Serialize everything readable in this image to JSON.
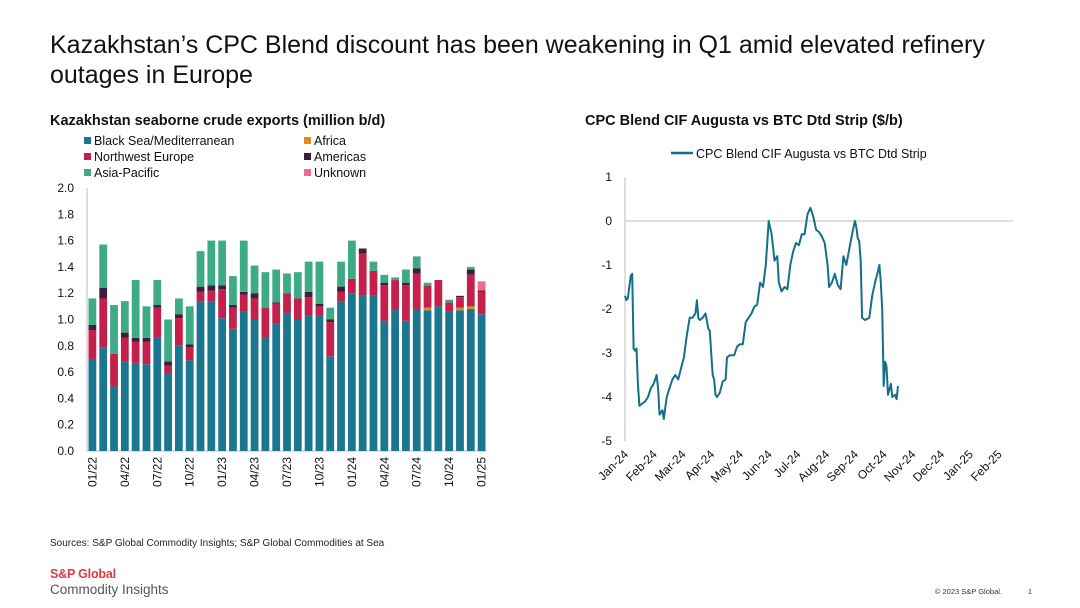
{
  "title": "Kazakhstan’s CPC Blend discount has been weakening in Q1 amid elevated refinery outages in Europe",
  "sources": "Sources: S&P Global Commodity Insights; S&P Global Commodities at Sea",
  "logo": {
    "line1": "S&P Global",
    "line2": "Commodity Insights"
  },
  "copyright": "© 2023 S&P Global.",
  "page_number": "1",
  "colors": {
    "black_sea": "#1b7690",
    "africa": "#e08b1f",
    "nw_europe": "#c4204b",
    "americas": "#3b1f3f",
    "asia_pacific": "#3eaa86",
    "unknown": "#f06b88",
    "line": "#137088"
  },
  "chart_data": [
    {
      "type": "bar",
      "stacked": true,
      "title": "Kazakhstan seaborne crude exports (million b/d)",
      "ylim": [
        0,
        2.0
      ],
      "yticks": [
        "0.0",
        "0.2",
        "0.4",
        "0.6",
        "0.8",
        "1.0",
        "1.2",
        "1.4",
        "1.6",
        "1.8",
        "2.0"
      ],
      "xtick_labels": [
        "01/22",
        "04/22",
        "07/22",
        "10/22",
        "01/23",
        "04/23",
        "07/23",
        "10/23",
        "01/24",
        "04/24",
        "07/24",
        "10/24",
        "01/25"
      ],
      "legend": [
        "Black Sea/Mediterranean",
        "Africa",
        "Northwest Europe",
        "Americas",
        "Asia-Pacific",
        "Unknown"
      ],
      "categories": [
        "01/22",
        "02/22",
        "03/22",
        "04/22",
        "05/22",
        "06/22",
        "07/22",
        "08/22",
        "09/22",
        "10/22",
        "11/22",
        "12/22",
        "01/23",
        "02/23",
        "03/23",
        "04/23",
        "05/23",
        "06/23",
        "07/23",
        "08/23",
        "09/23",
        "10/23",
        "11/23",
        "12/23",
        "01/24",
        "02/24",
        "03/24",
        "04/24",
        "05/24",
        "06/24",
        "07/24",
        "08/24",
        "09/24",
        "10/24",
        "11/24",
        "12/24",
        "01/25"
      ],
      "series": [
        {
          "name": "Black Sea/Mediterranean",
          "values": [
            0.7,
            0.79,
            0.49,
            0.68,
            0.67,
            0.66,
            0.86,
            0.59,
            0.8,
            0.69,
            1.14,
            1.14,
            1.01,
            0.93,
            1.06,
            1.0,
            0.86,
            0.97,
            1.05,
            1.0,
            1.03,
            1.03,
            0.72,
            1.14,
            1.2,
            1.18,
            1.18,
            0.99,
            1.08,
            0.99,
            1.08,
            1.07,
            1.1,
            1.06,
            1.07,
            1.08,
            1.04
          ]
        },
        {
          "name": "Africa",
          "values": [
            0,
            0,
            0,
            0,
            0,
            0,
            0,
            0,
            0,
            0,
            0,
            0,
            0,
            0,
            0,
            0,
            0,
            0,
            0,
            0,
            0,
            0,
            0,
            0,
            0,
            0,
            0,
            0,
            0,
            0,
            0,
            0.02,
            0,
            0,
            0.02,
            0.02,
            0
          ]
        },
        {
          "name": "Northwest Europe",
          "values": [
            0.22,
            0.37,
            0.25,
            0.18,
            0.16,
            0.17,
            0.23,
            0.06,
            0.21,
            0.1,
            0.07,
            0.08,
            0.22,
            0.16,
            0.13,
            0.16,
            0.23,
            0.15,
            0.15,
            0.16,
            0.14,
            0.07,
            0.26,
            0.07,
            0.11,
            0.32,
            0.19,
            0.27,
            0.22,
            0.27,
            0.27,
            0.17,
            0.2,
            0.07,
            0.08,
            0.24,
            0.17
          ]
        },
        {
          "name": "Americas",
          "values": [
            0.04,
            0.08,
            0,
            0.04,
            0.03,
            0.03,
            0.02,
            0.03,
            0.03,
            0.02,
            0.04,
            0.04,
            0.03,
            0.02,
            0.02,
            0.04,
            0,
            0.01,
            0,
            0,
            0.04,
            0.02,
            0.02,
            0.04,
            0,
            0.04,
            0,
            0.02,
            0,
            0.02,
            0.04,
            0,
            0,
            0,
            0.01,
            0.04,
            0.01
          ]
        },
        {
          "name": "Asia-Pacific",
          "values": [
            0.2,
            0.33,
            0.37,
            0.24,
            0.44,
            0.24,
            0.19,
            0.32,
            0.12,
            0.29,
            0.27,
            0.34,
            0.34,
            0.22,
            0.39,
            0.21,
            0.27,
            0.25,
            0.15,
            0.2,
            0.23,
            0.32,
            0.09,
            0.19,
            0.29,
            0,
            0.07,
            0.06,
            0.02,
            0.1,
            0.09,
            0.02,
            0,
            0.02,
            0,
            0.02,
            0
          ]
        },
        {
          "name": "Unknown",
          "values": [
            0,
            0,
            0,
            0,
            0,
            0,
            0,
            0,
            0,
            0,
            0,
            0,
            0,
            0,
            0,
            0,
            0,
            0,
            0,
            0,
            0,
            0,
            0,
            0,
            0,
            0,
            0,
            0,
            0,
            0,
            0,
            0,
            0,
            0,
            0,
            0,
            0.07
          ]
        }
      ]
    },
    {
      "type": "line",
      "title": "CPC Blend CIF Augusta vs BTC Dtd Strip ($/b)",
      "ylim": [
        -5,
        1
      ],
      "yticks": [
        "1",
        "0",
        "-1",
        "-2",
        "-3",
        "-4",
        "-5"
      ],
      "xtick_labels": [
        "Jan-24",
        "Feb-24",
        "Mar-24",
        "Apr-24",
        "May-24",
        "Jun-24",
        "Jul-24",
        "Aug-24",
        "Sep-24",
        "Oct-24",
        "Nov-24",
        "Dec-24",
        "Jan-25",
        "Feb-25"
      ],
      "series": [
        {
          "name": "CPC Blend CIF Augusta vs BTC Dtd Strip",
          "points": [
            [
              0,
              -1.7
            ],
            [
              0.05,
              -1.8
            ],
            [
              0.1,
              -1.75
            ],
            [
              0.15,
              -1.5
            ],
            [
              0.2,
              -1.25
            ],
            [
              0.25,
              -1.2
            ],
            [
              0.3,
              -2.9
            ],
            [
              0.35,
              -2.95
            ],
            [
              0.4,
              -2.9
            ],
            [
              0.45,
              -3.7
            ],
            [
              0.5,
              -4.2
            ],
            [
              0.6,
              -4.15
            ],
            [
              0.7,
              -4.1
            ],
            [
              0.8,
              -4.0
            ],
            [
              0.9,
              -3.8
            ],
            [
              1.0,
              -3.7
            ],
            [
              1.1,
              -3.5
            ],
            [
              1.15,
              -3.8
            ],
            [
              1.2,
              -4.4
            ],
            [
              1.3,
              -4.3
            ],
            [
              1.35,
              -4.5
            ],
            [
              1.45,
              -4.0
            ],
            [
              1.55,
              -3.8
            ],
            [
              1.65,
              -3.6
            ],
            [
              1.75,
              -3.5
            ],
            [
              1.85,
              -3.6
            ],
            [
              1.95,
              -3.35
            ],
            [
              2.05,
              -3.1
            ],
            [
              2.15,
              -2.6
            ],
            [
              2.25,
              -2.2
            ],
            [
              2.35,
              -2.2
            ],
            [
              2.45,
              -2.1
            ],
            [
              2.5,
              -1.8
            ],
            [
              2.55,
              -2.2
            ],
            [
              2.6,
              -2.25
            ],
            [
              2.7,
              -2.2
            ],
            [
              2.8,
              -2.1
            ],
            [
              2.9,
              -2.45
            ],
            [
              2.95,
              -2.5
            ],
            [
              3.0,
              -3.0
            ],
            [
              3.05,
              -3.5
            ],
            [
              3.1,
              -3.6
            ],
            [
              3.15,
              -3.95
            ],
            [
              3.2,
              -4.0
            ],
            [
              3.3,
              -3.9
            ],
            [
              3.4,
              -3.65
            ],
            [
              3.5,
              -3.6
            ],
            [
              3.55,
              -3.1
            ],
            [
              3.65,
              -3.05
            ],
            [
              3.8,
              -3.05
            ],
            [
              3.9,
              -2.85
            ],
            [
              4.0,
              -2.8
            ],
            [
              4.1,
              -2.8
            ],
            [
              4.2,
              -2.3
            ],
            [
              4.3,
              -2.2
            ],
            [
              4.4,
              -2.1
            ],
            [
              4.5,
              -1.95
            ],
            [
              4.6,
              -1.9
            ],
            [
              4.7,
              -1.4
            ],
            [
              4.8,
              -1.5
            ],
            [
              4.9,
              -1.0
            ],
            [
              5.0,
              0.0
            ],
            [
              5.1,
              -0.3
            ],
            [
              5.2,
              -0.9
            ],
            [
              5.3,
              -0.8
            ],
            [
              5.35,
              -1.4
            ],
            [
              5.45,
              -1.6
            ],
            [
              5.55,
              -1.5
            ],
            [
              5.65,
              -1.55
            ],
            [
              5.75,
              -1.0
            ],
            [
              5.85,
              -0.7
            ],
            [
              5.95,
              -0.5
            ],
            [
              6.05,
              -0.55
            ],
            [
              6.15,
              -0.3
            ],
            [
              6.25,
              -0.3
            ],
            [
              6.35,
              0.15
            ],
            [
              6.45,
              0.3
            ],
            [
              6.55,
              0.1
            ],
            [
              6.65,
              -0.2
            ],
            [
              6.75,
              -0.25
            ],
            [
              6.85,
              -0.35
            ],
            [
              6.95,
              -0.5
            ],
            [
              7.05,
              -1.0
            ],
            [
              7.1,
              -1.5
            ],
            [
              7.2,
              -1.4
            ],
            [
              7.3,
              -1.2
            ],
            [
              7.4,
              -1.45
            ],
            [
              7.5,
              -1.55
            ],
            [
              7.6,
              -0.8
            ],
            [
              7.7,
              -1.0
            ],
            [
              7.8,
              -0.65
            ],
            [
              7.9,
              -0.3
            ],
            [
              8.0,
              0.0
            ],
            [
              8.05,
              -0.15
            ],
            [
              8.1,
              -0.4
            ],
            [
              8.15,
              -0.45
            ],
            [
              8.2,
              -0.9
            ],
            [
              8.25,
              -2.2
            ],
            [
              8.35,
              -2.25
            ],
            [
              8.5,
              -2.2
            ],
            [
              8.6,
              -1.7
            ],
            [
              8.7,
              -1.4
            ],
            [
              8.8,
              -1.15
            ],
            [
              8.85,
              -1.0
            ],
            [
              8.9,
              -1.4
            ],
            [
              8.95,
              -2.0
            ],
            [
              9.0,
              -3.75
            ],
            [
              9.05,
              -3.2
            ],
            [
              9.1,
              -3.3
            ],
            [
              9.15,
              -3.95
            ],
            [
              9.25,
              -3.7
            ],
            [
              9.3,
              -4.0
            ],
            [
              9.4,
              -3.95
            ],
            [
              9.45,
              -4.05
            ],
            [
              9.5,
              -3.75
            ]
          ]
        }
      ]
    }
  ]
}
